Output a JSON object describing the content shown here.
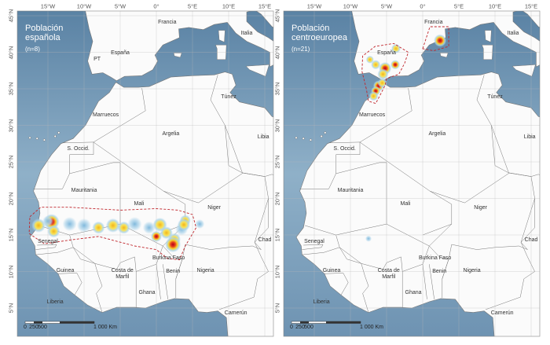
{
  "graticule": {
    "longitudes": [
      "15°W",
      "10°W",
      "5°W",
      "0°",
      "5°E",
      "10°E",
      "15°E"
    ],
    "latitudes": [
      "45°N",
      "40°N",
      "35°N",
      "30°N",
      "25°N",
      "20°N",
      "15°N",
      "10°N",
      "5°N"
    ]
  },
  "scale_bar": [
    "0",
    "250",
    "500",
    "1 000 Km"
  ],
  "panels": [
    {
      "title": "Población española",
      "sample": "(n=8)",
      "countries": [
        "Francia",
        "Italia",
        "PT",
        "España",
        "Túnez",
        "Marruecos",
        "Argelia",
        "Libia",
        "S. Occid.",
        "Mauritania",
        "Mali",
        "Niger",
        "Chad",
        "Senegal",
        "Burkina Faso",
        "Guinea",
        "Costa de Marfil",
        "Ghana",
        "Benin",
        "Nigeria",
        "Liberia",
        "Camerún"
      ]
    },
    {
      "title": "Población centroeuropea",
      "sample": "(n=21)",
      "countries": [
        "Francia",
        "Italia",
        "España",
        "Túnez",
        "Marruecos",
        "Argelia",
        "Libia",
        "S. Occid.",
        "Mauritania",
        "Mali",
        "Niger",
        "Chad",
        "Senegal",
        "Burkina Faso",
        "Guinea",
        "Costa de Marfil",
        "Ghana",
        "Benin",
        "Nigeria",
        "Liberia",
        "Camerún"
      ]
    }
  ]
}
